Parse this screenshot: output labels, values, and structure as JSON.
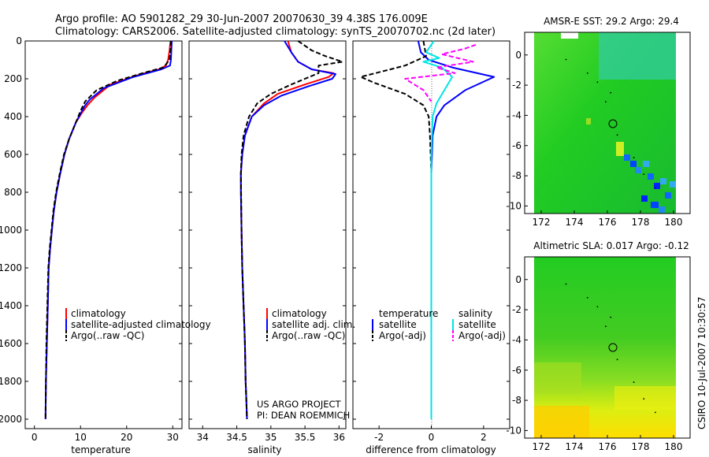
{
  "header": {
    "line1": "Argo profile: AO 5901282_29 30-Jun-2007 20070630_39 4.38S 176.009E",
    "line2": "Climatology: CARS2006. Satellite-adjusted climatology: synTS_20070702.nc (2d later)"
  },
  "credit": {
    "line1": "US ARGO PROJECT",
    "line2": "PI: DEAN ROEMMICH"
  },
  "timestamp": "CSIRO 10-Jul-2007 10:30:57",
  "colors": {
    "climatology": "#ff0000",
    "satellite": "#0000ff",
    "argo": "#000000",
    "sal_satellite": "#00e5e5",
    "sal_argo": "#ff00ff",
    "map_green": "#22cc22",
    "map_yellow": "#ffee00",
    "map_blue": "#0022ff"
  },
  "chart_data": [
    {
      "type": "line",
      "panel": "temperature",
      "xlabel": "temperature",
      "ylabel": "",
      "xlim": [
        -2,
        32
      ],
      "ylim": [
        2050,
        0
      ],
      "xticks": [
        0,
        10,
        20,
        30
      ],
      "yticks": [
        0,
        200,
        400,
        600,
        800,
        1000,
        1200,
        1400,
        1600,
        1800,
        2000
      ],
      "legend": {
        "position": "bottom-right",
        "items": [
          "climatology",
          "satellite-adjusted climatology",
          "Argo(..raw -QC)"
        ]
      },
      "series": [
        {
          "name": "climatology",
          "color": "#ff0000",
          "dash": false,
          "x": [
            29.5,
            29.3,
            29.0,
            28.5,
            27.0,
            22.5,
            16.5,
            13.0,
            11.5,
            10.3,
            9.0,
            7.5,
            6.5,
            5.6,
            4.8,
            4.2,
            3.8,
            3.4,
            3.1,
            2.9,
            2.7,
            2.5,
            2.4
          ],
          "y": [
            0,
            50,
            100,
            130,
            150,
            180,
            230,
            300,
            340,
            380,
            430,
            520,
            600,
            700,
            800,
            900,
            1000,
            1100,
            1200,
            1400,
            1600,
            1800,
            2000
          ]
        },
        {
          "name": "satellite-adjusted climatology",
          "color": "#0000ff",
          "dash": false,
          "x": [
            29.8,
            29.7,
            29.6,
            29.4,
            27.5,
            21.5,
            15.0,
            12.0,
            11.0,
            10.1,
            9.0,
            7.5,
            6.5,
            5.6,
            4.8,
            4.2,
            3.8,
            3.4,
            3.1,
            2.9,
            2.7,
            2.5,
            2.4
          ],
          "y": [
            0,
            50,
            100,
            130,
            150,
            190,
            250,
            310,
            340,
            380,
            430,
            520,
            600,
            700,
            800,
            900,
            1000,
            1100,
            1200,
            1400,
            1600,
            1800,
            2000
          ]
        },
        {
          "name": "Argo(..raw -QC)",
          "color": "#000000",
          "dash": true,
          "x": [
            29.6,
            29.5,
            29.3,
            28.0,
            23.5,
            18.0,
            13.5,
            11.0,
            10.0,
            9.0,
            7.5,
            6.4,
            5.5,
            4.7,
            4.1,
            3.7,
            3.3,
            3.0,
            2.8,
            2.6,
            2.5,
            2.4
          ],
          "y": [
            0,
            50,
            100,
            140,
            170,
            210,
            260,
            320,
            370,
            430,
            520,
            600,
            700,
            800,
            900,
            1000,
            1100,
            1200,
            1400,
            1600,
            1800,
            2000
          ]
        }
      ]
    },
    {
      "type": "line",
      "panel": "salinity",
      "xlabel": "salinity",
      "ylabel": "",
      "xlim": [
        33.8,
        36.1
      ],
      "ylim": [
        2050,
        0
      ],
      "xticks": [
        34,
        34.5,
        35,
        35.5,
        36
      ],
      "xticklabels": [
        "34",
        "34.5",
        "35",
        "35.5",
        "36"
      ],
      "legend": {
        "position": "bottom-right",
        "items": [
          "climatology",
          "satellite adj. clim.",
          "Argo(..raw -QC)"
        ]
      },
      "series": [
        {
          "name": "climatology",
          "color": "#ff0000",
          "dash": false,
          "x": [
            35.25,
            35.3,
            35.4,
            35.6,
            35.92,
            35.85,
            35.5,
            35.1,
            34.9,
            34.72,
            34.62,
            34.58,
            34.56,
            34.56,
            34.57,
            34.58,
            34.6,
            34.61,
            34.62,
            34.63,
            34.64,
            34.65
          ],
          "y": [
            0,
            60,
            110,
            150,
            170,
            190,
            230,
            280,
            330,
            400,
            500,
            600,
            700,
            800,
            1000,
            1200,
            1400,
            1500,
            1600,
            1800,
            1900,
            2000
          ]
        },
        {
          "name": "satellite adj. clim.",
          "color": "#0000ff",
          "dash": false,
          "x": [
            35.2,
            35.3,
            35.4,
            35.6,
            35.95,
            35.9,
            35.55,
            35.15,
            34.9,
            34.72,
            34.62,
            34.58,
            34.56,
            34.56,
            34.57,
            34.58,
            34.6,
            34.61,
            34.62,
            34.63,
            34.64,
            34.65
          ],
          "y": [
            0,
            60,
            110,
            150,
            175,
            200,
            240,
            290,
            340,
            400,
            500,
            600,
            700,
            800,
            1000,
            1200,
            1400,
            1500,
            1600,
            1800,
            1900,
            2000
          ]
        },
        {
          "name": "Argo(..raw -QC)",
          "color": "#000000",
          "dash": true,
          "x": [
            35.4,
            35.6,
            35.8,
            36.05,
            35.7,
            35.7,
            35.3,
            35.0,
            34.8,
            34.68,
            34.6,
            34.57,
            34.56,
            34.57,
            34.58,
            34.6,
            34.61,
            34.62,
            34.63,
            34.64,
            34.65
          ],
          "y": [
            0,
            50,
            80,
            110,
            130,
            170,
            230,
            280,
            330,
            400,
            500,
            600,
            700,
            1000,
            1200,
            1400,
            1500,
            1600,
            1800,
            1900,
            2000
          ]
        }
      ]
    },
    {
      "type": "line",
      "panel": "difference",
      "xlabel": "difference from climatology",
      "ylabel": "",
      "xlim": [
        -3,
        3
      ],
      "ylim": [
        2050,
        0
      ],
      "xticks": [
        -2,
        0,
        2
      ],
      "legend": {
        "position": "bottom",
        "headers": [
          "temperature",
          "salinity"
        ],
        "items": [
          "satellite",
          "Argo(-adj)",
          "satellite",
          "Argo(-adj)"
        ]
      },
      "series": [
        {
          "name": "temperature satellite",
          "color": "#0000ff",
          "dash": false,
          "x": [
            -0.5,
            -0.4,
            -0.1,
            0.8,
            2.4,
            1.3,
            0.5,
            0.2,
            0.05,
            0.0,
            0.0
          ],
          "y": [
            0,
            60,
            100,
            140,
            190,
            260,
            340,
            400,
            500,
            700,
            2000
          ]
        },
        {
          "name": "temperature Argo(-adj)",
          "color": "#000000",
          "dash": true,
          "x": [
            -0.3,
            -0.2,
            -1.0,
            -2.7,
            -2.2,
            -1.0,
            -0.3,
            -0.1,
            -0.05,
            0.0,
            0.0
          ],
          "y": [
            0,
            80,
            130,
            190,
            220,
            280,
            340,
            400,
            500,
            700,
            2000
          ]
        },
        {
          "name": "salinity satellite",
          "color": "#00e5e5",
          "dash": false,
          "x": [
            0.1,
            -0.2,
            0.3,
            -0.3,
            0.4,
            0.8,
            0.5,
            0.2,
            0.05,
            0.0,
            0.0
          ],
          "y": [
            0,
            60,
            90,
            110,
            140,
            190,
            260,
            330,
            400,
            600,
            2000
          ]
        },
        {
          "name": "salinity Argo(-adj)",
          "color": "#ff00ff",
          "dash": true,
          "x": [
            1.7,
            1.3,
            0.4,
            1.6,
            0.2,
            0.9,
            -1.0,
            -0.3,
            0.0
          ],
          "y": [
            20,
            40,
            70,
            110,
            140,
            170,
            200,
            260,
            320
          ]
        }
      ]
    }
  ],
  "maps": [
    {
      "title": "AMSR-E SST: 29.2 Argo: 29.4",
      "xticks": [
        "172",
        "174",
        "176",
        "178",
        "180"
      ],
      "yticks": [
        "0",
        "-2",
        "-4",
        "-6",
        "-8",
        "-10"
      ],
      "xlim": [
        171,
        181
      ],
      "ylim": [
        -10.5,
        1.5
      ],
      "profile_marker": {
        "lon": 176.0,
        "lat": -4.38
      }
    },
    {
      "title": "Altimetric SLA: 0.017 Argo: -0.12",
      "xticks": [
        "172",
        "174",
        "176",
        "178",
        "180"
      ],
      "yticks": [
        "0",
        "-2",
        "-4",
        "-6",
        "-8",
        "-10"
      ],
      "xlim": [
        171,
        181
      ],
      "ylim": [
        -10.5,
        1.5
      ],
      "profile_marker": {
        "lon": 176.0,
        "lat": -4.38
      }
    }
  ]
}
